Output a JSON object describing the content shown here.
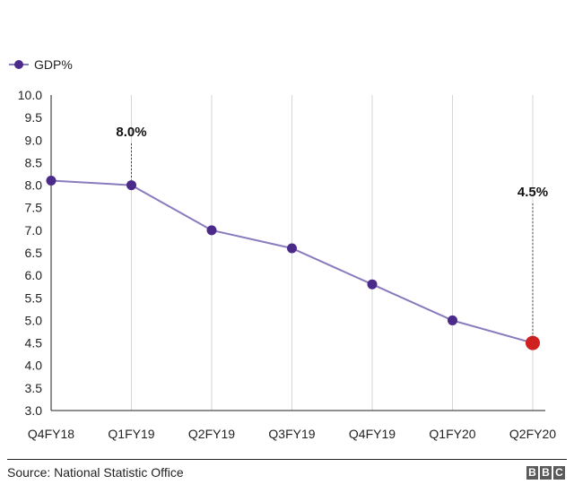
{
  "chart_data": {
    "type": "line",
    "title": "",
    "xlabel": "",
    "ylabel": "",
    "categories": [
      "Q4FY18",
      "Q1FY19",
      "Q2FY19",
      "Q3FY19",
      "Q4FY19",
      "Q1FY20",
      "Q2FY20"
    ],
    "series": [
      {
        "name": "GDP%",
        "values": [
          8.1,
          8.0,
          7.0,
          6.6,
          5.8,
          5.0,
          4.5
        ]
      }
    ],
    "ylim": [
      3.0,
      10.0
    ],
    "yticks": [
      "3.0",
      "3.5",
      "4.0",
      "4.5",
      "5.0",
      "5.5",
      "6.0",
      "6.5",
      "7.0",
      "7.5",
      "8.0",
      "8.5",
      "9.0",
      "9.5",
      "10.0"
    ],
    "grid": "vertical",
    "legend_position": "top-left",
    "annotations": [
      {
        "category": "Q1FY19",
        "text": "8.0%"
      },
      {
        "category": "Q2FY20",
        "text": "4.5%"
      }
    ],
    "highlight_index": 6
  },
  "colors": {
    "line": "#8a7bbd",
    "marker": "#4b2a8a",
    "highlight": "#d02020",
    "grid": "#d6d6d6",
    "axis": "#222222"
  },
  "footer": {
    "source": "Source: National Statistic Office",
    "logo_letters": [
      "B",
      "B",
      "C"
    ]
  }
}
